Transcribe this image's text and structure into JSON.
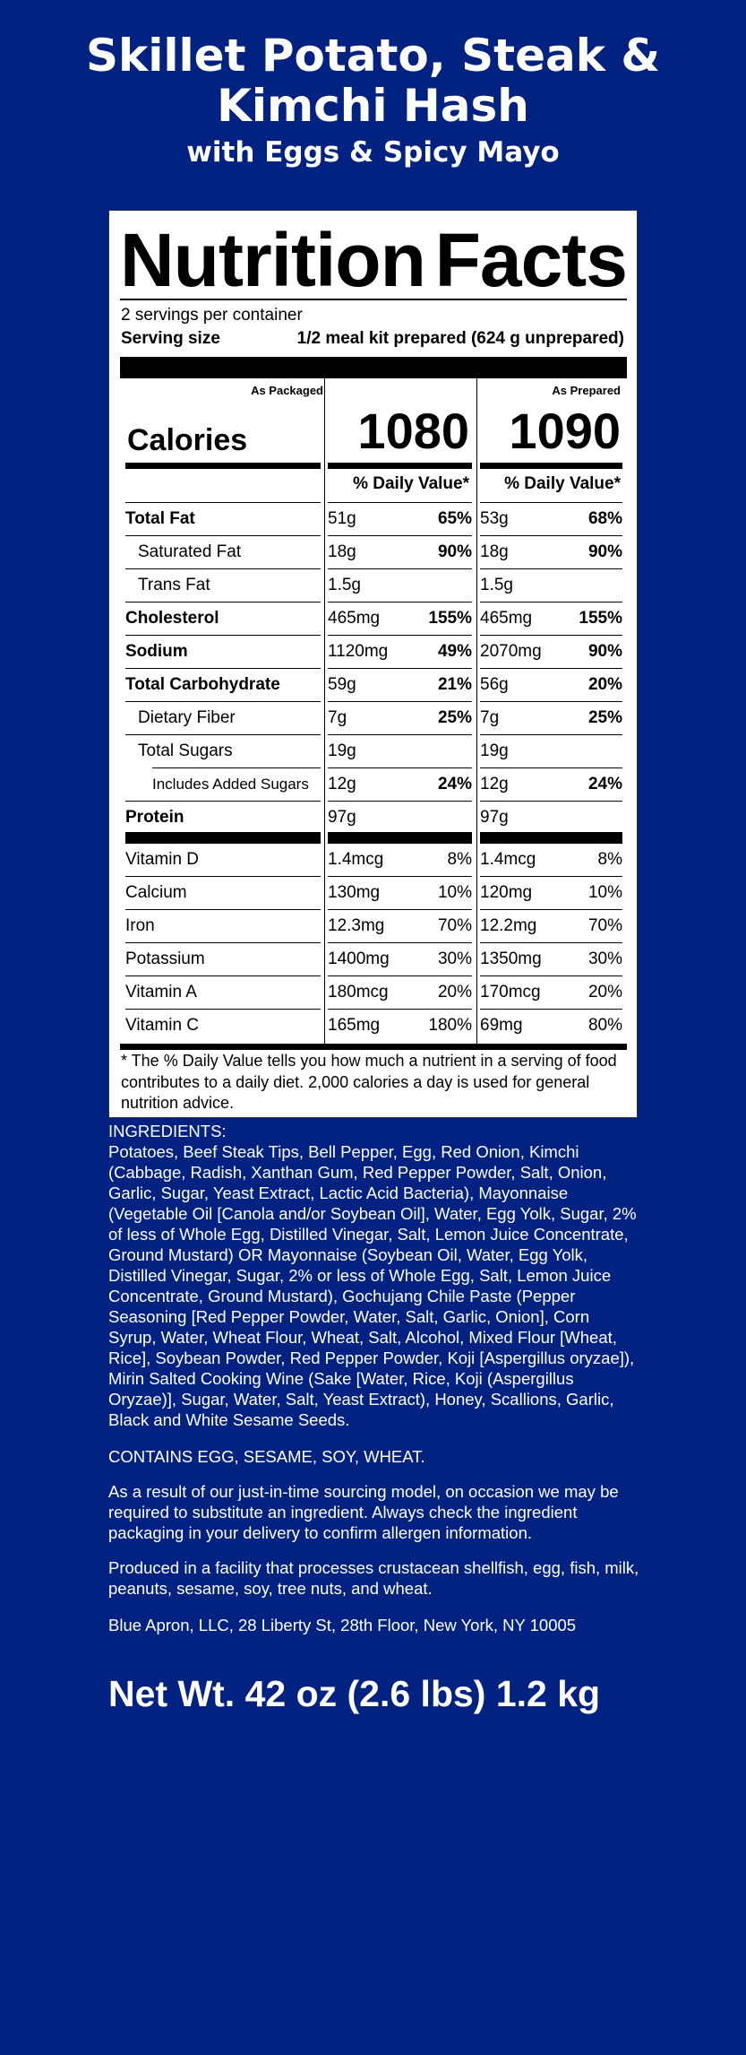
{
  "title": {
    "line1": "Skillet Potato, Steak &",
    "line2": "Kimchi Hash",
    "subtitle": "with Eggs & Spicy Mayo"
  },
  "label": {
    "heading_word1": "Nutrition",
    "heading_word2": "Facts",
    "servings": "2 servings per container",
    "serving_size_label": "Serving size",
    "serving_size_value": "1/2 meal kit prepared (624 g unprepared)",
    "col_packaged": "As Packaged",
    "col_prepared": "As Prepared",
    "calories_label": "Calories",
    "calories_packaged": "1080",
    "calories_prepared": "1090",
    "dv_header": "% Daily Value*",
    "nutrients": [
      {
        "name": "Total Fat",
        "bold": true,
        "indent": 0,
        "p_amt": "51g",
        "p_dv": "65%",
        "r_amt": "53g",
        "r_dv": "68%"
      },
      {
        "name": "Saturated Fat",
        "bold": false,
        "indent": 1,
        "p_amt": "18g",
        "p_dv": "90%",
        "r_amt": "18g",
        "r_dv": "90%"
      },
      {
        "name": "Trans Fat",
        "bold": false,
        "indent": 1,
        "p_amt": "1.5g",
        "p_dv": "",
        "r_amt": "1.5g",
        "r_dv": ""
      },
      {
        "name": "Cholesterol",
        "bold": true,
        "indent": 0,
        "p_amt": "465mg",
        "p_dv": "155%",
        "r_amt": "465mg",
        "r_dv": "155%"
      },
      {
        "name": "Sodium",
        "bold": true,
        "indent": 0,
        "p_amt": "1120mg",
        "p_dv": "49%",
        "r_amt": "2070mg",
        "r_dv": "90%"
      },
      {
        "name": "Total Carbohydrate",
        "bold": true,
        "indent": 0,
        "p_amt": "59g",
        "p_dv": "21%",
        "r_amt": "56g",
        "r_dv": "20%"
      },
      {
        "name": "Dietary Fiber",
        "bold": false,
        "indent": 1,
        "p_amt": "7g",
        "p_dv": "25%",
        "r_amt": "7g",
        "r_dv": "25%"
      },
      {
        "name": "Total Sugars",
        "bold": false,
        "indent": 1,
        "p_amt": "19g",
        "p_dv": "",
        "r_amt": "19g",
        "r_dv": ""
      },
      {
        "name": "Includes Added Sugars",
        "bold": false,
        "indent": 2,
        "p_amt": "12g",
        "p_dv": "24%",
        "r_amt": "12g",
        "r_dv": "24%"
      },
      {
        "name": "Protein",
        "bold": true,
        "indent": 0,
        "p_amt": "97g",
        "p_dv": "",
        "r_amt": "97g",
        "r_dv": ""
      }
    ],
    "vitamins": [
      {
        "name": "Vitamin D",
        "p_amt": "1.4mcg",
        "p_dv": "8%",
        "r_amt": "1.4mcg",
        "r_dv": "8%"
      },
      {
        "name": "Calcium",
        "p_amt": "130mg",
        "p_dv": "10%",
        "r_amt": "120mg",
        "r_dv": "10%"
      },
      {
        "name": "Iron",
        "p_amt": "12.3mg",
        "p_dv": "70%",
        "r_amt": "12.2mg",
        "r_dv": "70%"
      },
      {
        "name": "Potassium",
        "p_amt": "1400mg",
        "p_dv": "30%",
        "r_amt": "1350mg",
        "r_dv": "30%"
      },
      {
        "name": "Vitamin A",
        "p_amt": "180mcg",
        "p_dv": "20%",
        "r_amt": "170mcg",
        "r_dv": "20%"
      },
      {
        "name": "Vitamin C",
        "p_amt": "165mg",
        "p_dv": "180%",
        "r_amt": "69mg",
        "r_dv": "80%"
      }
    ],
    "footnote": "* The % Daily Value tells you how much a nutrient in a serving of food contributes to a daily diet. 2,000 calories a day is used for general nutrition advice."
  },
  "ingredients": {
    "heading": "INGREDIENTS:",
    "text": "Potatoes, Beef Steak Tips, Bell Pepper, Egg, Red Onion, Kimchi (Cabbage, Radish, Xanthan Gum, Red Pepper Powder, Salt, Onion, Garlic, Sugar, Yeast Extract, Lactic Acid Bacteria), Mayonnaise (Vegetable Oil [Canola and/or Soybean Oil], Water, Egg Yolk, Sugar, 2% of less of Whole Egg, Distilled Vinegar, Salt, Lemon Juice Concentrate, Ground Mustard) OR Mayonnaise (Soybean Oil, Water, Egg Yolk, Distilled Vinegar, Sugar, 2% or less of Whole Egg, Salt, Lemon Juice Concentrate, Ground Mustard), Gochujang Chile Paste (Pepper Seasoning [Red Pepper Powder, Water, Salt, Garlic, Onion], Corn Syrup, Water, Wheat Flour, Wheat, Salt, Alcohol, Mixed Flour [Wheat, Rice], Soybean Powder, Red Pepper Powder, Koji [Aspergillus oryzae]), Mirin Salted Cooking Wine (Sake [Water, Rice, Koji (Aspergillus Oryzae)], Sugar, Water, Salt, Yeast Extract), Honey, Scallions, Garlic, Black and White Sesame Seeds.",
    "contains": "CONTAINS EGG, SESAME, SOY, WHEAT.",
    "sourcing": "As a result of our just-in-time sourcing model, on occasion we may be required to substitute an ingredient. Always check the ingredient packaging in your delivery to confirm allergen information.",
    "facility": "Produced in a facility that processes crustacean shellfish, egg, fish, milk, peanuts, sesame, soy, tree nuts, and wheat.",
    "address": "Blue Apron, LLC, 28 Liberty St, 28th Floor, New York, NY 10005"
  },
  "net_weight": "Net Wt. 42 oz (2.6 lbs) 1.2 kg",
  "colors": {
    "background": "#022282",
    "label": "#ffffff",
    "text": "#000000"
  }
}
